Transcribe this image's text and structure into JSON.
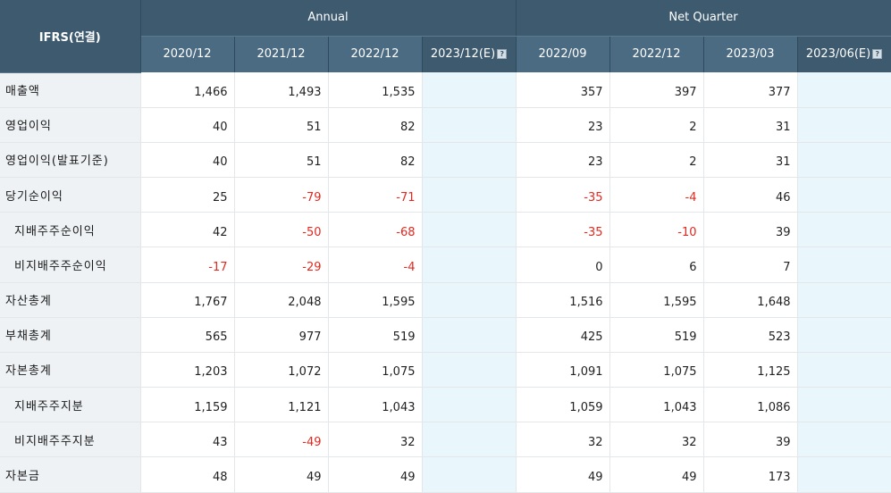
{
  "header": {
    "ifrs_label": "IFRS(연결)",
    "annual_label": "Annual",
    "quarter_label": "Net Quarter",
    "annual_periods": [
      "2020/12",
      "2021/12",
      "2022/12",
      "2023/12(E)"
    ],
    "quarter_periods": [
      "2022/09",
      "2022/12",
      "2023/03",
      "2023/06(E)"
    ],
    "help_icon_glyph": "?"
  },
  "rows": [
    {
      "label": "매출액",
      "indent": false,
      "annual": [
        "1,466",
        "1,493",
        "1,535",
        ""
      ],
      "quarter": [
        "357",
        "397",
        "377",
        ""
      ]
    },
    {
      "label": "영업이익",
      "indent": false,
      "annual": [
        "40",
        "51",
        "82",
        ""
      ],
      "quarter": [
        "23",
        "2",
        "31",
        ""
      ]
    },
    {
      "label": "영업이익(발표기준)",
      "indent": false,
      "annual": [
        "40",
        "51",
        "82",
        ""
      ],
      "quarter": [
        "23",
        "2",
        "31",
        ""
      ]
    },
    {
      "label": "당기순이익",
      "indent": false,
      "annual": [
        "25",
        "-79",
        "-71",
        ""
      ],
      "quarter": [
        "-35",
        "-4",
        "46",
        ""
      ]
    },
    {
      "label": "지배주주순이익",
      "indent": true,
      "annual": [
        "42",
        "-50",
        "-68",
        ""
      ],
      "quarter": [
        "-35",
        "-10",
        "39",
        ""
      ]
    },
    {
      "label": "비지배주주순이익",
      "indent": true,
      "annual": [
        "-17",
        "-29",
        "-4",
        ""
      ],
      "quarter": [
        "0",
        "6",
        "7",
        ""
      ]
    },
    {
      "label": "자산총계",
      "indent": false,
      "annual": [
        "1,767",
        "2,048",
        "1,595",
        ""
      ],
      "quarter": [
        "1,516",
        "1,595",
        "1,648",
        ""
      ]
    },
    {
      "label": "부채총계",
      "indent": false,
      "annual": [
        "565",
        "977",
        "519",
        ""
      ],
      "quarter": [
        "425",
        "519",
        "523",
        ""
      ]
    },
    {
      "label": "자본총계",
      "indent": false,
      "annual": [
        "1,203",
        "1,072",
        "1,075",
        ""
      ],
      "quarter": [
        "1,091",
        "1,075",
        "1,125",
        ""
      ]
    },
    {
      "label": "지배주주지분",
      "indent": true,
      "annual": [
        "1,159",
        "1,121",
        "1,043",
        ""
      ],
      "quarter": [
        "1,059",
        "1,043",
        "1,086",
        ""
      ]
    },
    {
      "label": "비지배주주지분",
      "indent": true,
      "annual": [
        "43",
        "-49",
        "32",
        ""
      ],
      "quarter": [
        "32",
        "32",
        "39",
        ""
      ]
    },
    {
      "label": "자본금",
      "indent": false,
      "annual": [
        "48",
        "49",
        "49",
        ""
      ],
      "quarter": [
        "49",
        "49",
        "173",
        ""
      ]
    }
  ],
  "colors": {
    "negative": "#e3281e",
    "header_bg": "#3d5a6f",
    "estimate_bg": "#e9f6fc",
    "label_bg": "#eef2f5"
  }
}
